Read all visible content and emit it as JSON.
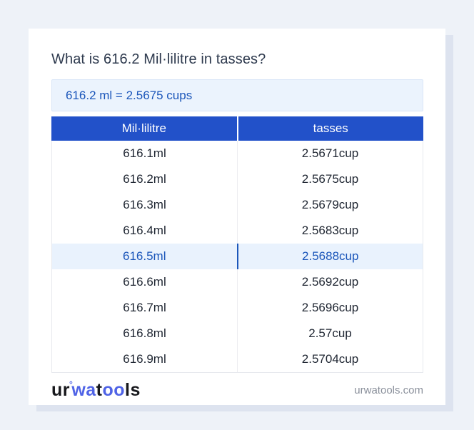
{
  "card": {
    "title": "What is 616.2 Mil·lilitre in tasses?",
    "result": "616.2 ml = 2.5675 cups",
    "table": {
      "headers": [
        "Mil·lilitre",
        "tasses"
      ],
      "rows": [
        [
          "616.1ml",
          "2.5671cup"
        ],
        [
          "616.2ml",
          "2.5675cup"
        ],
        [
          "616.3ml",
          "2.5679cup"
        ],
        [
          "616.4ml",
          "2.5683cup"
        ],
        [
          "616.5ml",
          "2.5688cup"
        ],
        [
          "616.6ml",
          "2.5692cup"
        ],
        [
          "616.7ml",
          "2.5696cup"
        ],
        [
          "616.8ml",
          "2.57cup"
        ],
        [
          "616.9ml",
          "2.5704cup"
        ]
      ],
      "highlighted_index": 4
    },
    "footer": {
      "logo_parts": {
        "p1": "ur",
        "deg": "°",
        "p2": "wa",
        "p3": "t",
        "p4": "oo",
        "p5": "ls"
      },
      "site": "urwatools.com"
    }
  },
  "colors": {
    "header_blue": "#2251c9",
    "accent_blue": "#1b56ba",
    "highlight_row_bg": "#e9f2fd",
    "result_box_bg": "#ebf3fd",
    "logo_blue": "#4f63e6",
    "page_bg": "#eef2f8"
  }
}
